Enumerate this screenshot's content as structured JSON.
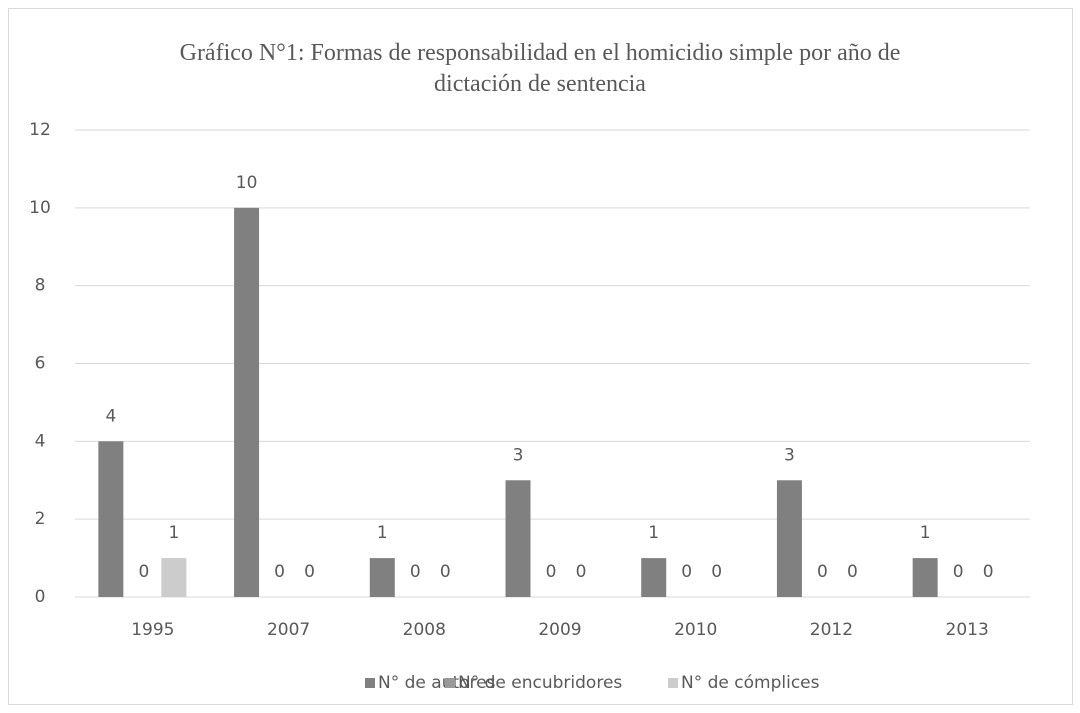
{
  "chart_data": {
    "type": "bar",
    "title": "Gráfico N°1: Formas de responsabilidad en el homicidio simple por año de dictación de sentencia",
    "categories": [
      "1995",
      "2007",
      "2008",
      "2009",
      "2010",
      "2012",
      "2013"
    ],
    "series": [
      {
        "name": "N° de autores",
        "color": "#808080",
        "values": [
          4,
          10,
          1,
          3,
          1,
          3,
          1
        ]
      },
      {
        "name": "N° de encubridores",
        "color": "#999999",
        "values": [
          0,
          0,
          0,
          0,
          0,
          0,
          0
        ]
      },
      {
        "name": "N° de cómplices",
        "color": "#cccccc",
        "values": [
          1,
          0,
          0,
          0,
          0,
          0,
          0
        ]
      }
    ],
    "ylim": [
      0,
      12
    ],
    "yticks": [
      0,
      2,
      4,
      6,
      8,
      10,
      12
    ],
    "grid": true,
    "legend": "bottom"
  }
}
